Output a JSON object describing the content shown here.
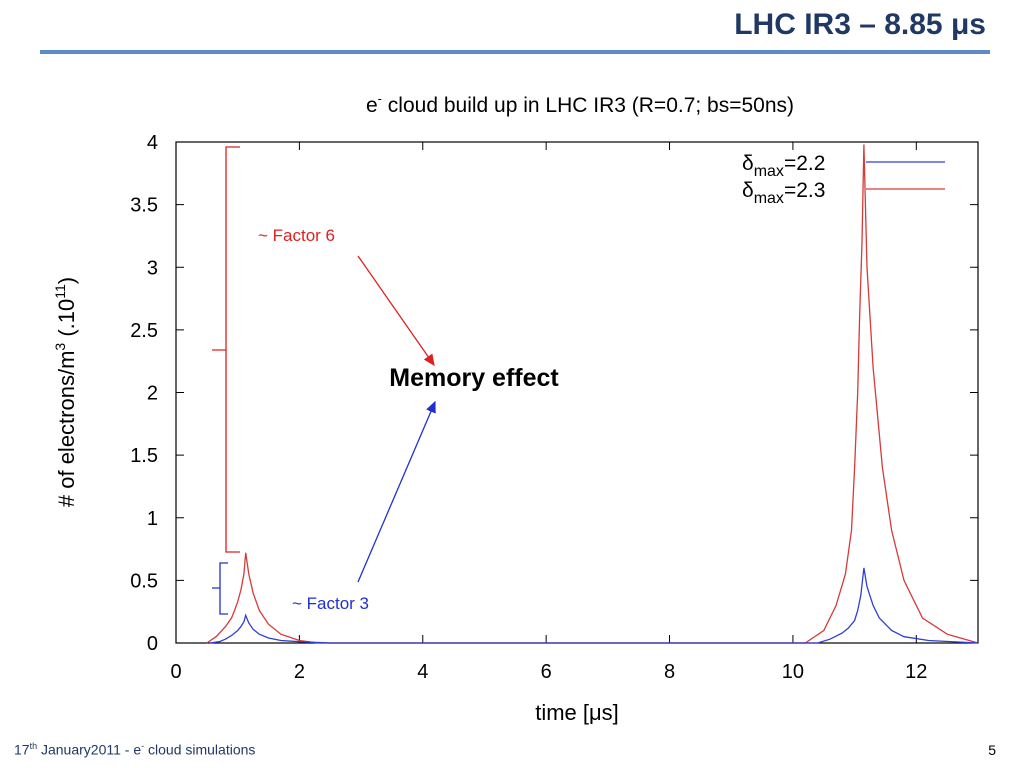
{
  "slide": {
    "title": "LHC IR3 – 8.85 μs",
    "footer_day": "17",
    "footer_sup": "th",
    "footer_rest": " January2011  -  e",
    "footer_sup2": "-",
    "footer_tail": " cloud simulations",
    "page_number": "5"
  },
  "annotations": {
    "factor6": "~ Factor 6",
    "factor3": "~ Factor 3",
    "memory": "Memory effect",
    "factor6_color": "#e02020",
    "factor3_color": "#2030d0"
  },
  "chart_data": {
    "type": "line",
    "title": "e- cloud build up in LHC IR3 (R=0.7; bs=50ns)",
    "title_main": "e",
    "title_sup": "-",
    "title_rest": " cloud build up in LHC IR3 (R=0.7; bs=50ns)",
    "xlabel": "time [μs]",
    "ylabel": "# of electrons/m3 (.10^11)",
    "ylabel_main": "# of electrons/m",
    "ylabel_sup": "3",
    "ylabel_mid": " (.10",
    "ylabel_sup2": "11",
    "ylabel_end": ")",
    "xlim": [
      0,
      13
    ],
    "ylim": [
      0,
      4
    ],
    "xticks": [
      "0",
      "2",
      "4",
      "6",
      "8",
      "10",
      "12"
    ],
    "xtick_values": [
      0,
      2,
      4,
      6,
      8,
      10,
      12
    ],
    "yticks": [
      "0",
      "0.5",
      "1",
      "1.5",
      "2",
      "2.5",
      "3",
      "3.5",
      "4"
    ],
    "ytick_values": [
      0,
      0.5,
      1,
      1.5,
      2,
      2.5,
      3,
      3.5,
      4
    ],
    "legend_position": "top-right",
    "series": [
      {
        "name": "δmax=2.2",
        "name_symbol": "δ",
        "name_sub": "max",
        "name_rest": "=2.2",
        "color": "#2e3fd6",
        "x": [
          0.55,
          0.7,
          0.8,
          0.9,
          0.95,
          1.0,
          1.05,
          1.1,
          1.13,
          1.18,
          1.25,
          1.35,
          1.5,
          1.7,
          2.0,
          2.5,
          10.4,
          10.6,
          10.8,
          10.9,
          11.0,
          11.05,
          11.1,
          11.15,
          11.2,
          11.3,
          11.4,
          11.6,
          11.8,
          12.2,
          13.0
        ],
        "y": [
          0,
          0.01,
          0.03,
          0.06,
          0.08,
          0.1,
          0.13,
          0.17,
          0.22,
          0.16,
          0.11,
          0.07,
          0.04,
          0.02,
          0.01,
          0,
          0,
          0.03,
          0.08,
          0.12,
          0.18,
          0.26,
          0.38,
          0.6,
          0.45,
          0.3,
          0.2,
          0.1,
          0.05,
          0.02,
          0
        ]
      },
      {
        "name": "δmax=2.3",
        "name_symbol": "δ",
        "name_sub": "max",
        "name_rest": "=2.3",
        "color": "#d63a3a",
        "x": [
          0.5,
          0.65,
          0.8,
          0.9,
          0.95,
          1.0,
          1.05,
          1.1,
          1.13,
          1.18,
          1.25,
          1.35,
          1.5,
          1.7,
          2.0,
          2.3,
          10.2,
          10.5,
          10.7,
          10.85,
          10.95,
          11.0,
          11.05,
          11.08,
          11.12,
          11.15,
          11.2,
          11.3,
          11.45,
          11.6,
          11.8,
          12.1,
          12.5,
          13.0
        ],
        "y": [
          0,
          0.05,
          0.13,
          0.2,
          0.26,
          0.33,
          0.42,
          0.55,
          0.72,
          0.55,
          0.4,
          0.26,
          0.15,
          0.07,
          0.02,
          0,
          0,
          0.1,
          0.3,
          0.55,
          0.9,
          1.4,
          2.0,
          2.6,
          3.2,
          3.98,
          3.0,
          2.2,
          1.4,
          0.9,
          0.5,
          0.2,
          0.07,
          0
        ]
      }
    ]
  }
}
